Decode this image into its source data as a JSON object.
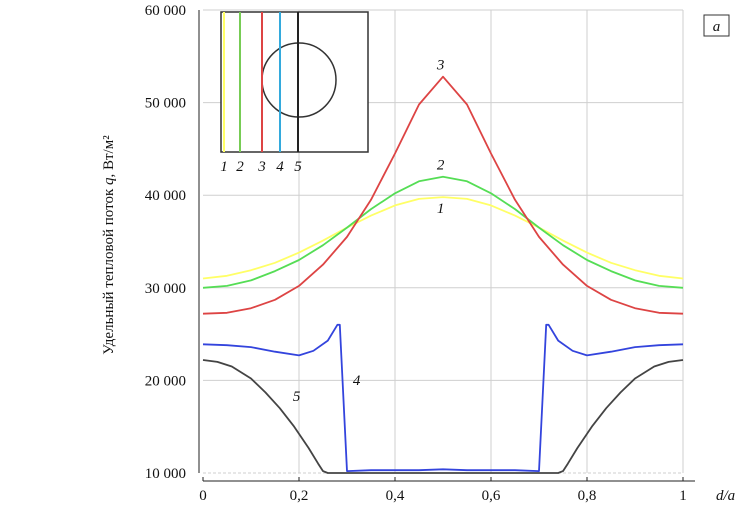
{
  "chart_data": {
    "type": "line",
    "title": "",
    "ylabel_main": "Удельный тепловой поток ",
    "ylabel_var": "q",
    "ylabel_unit": ", Вт/м²",
    "xlabel": "d/a",
    "panel_label": "a",
    "xlim": [
      0,
      1
    ],
    "ylim": [
      10000,
      60000
    ],
    "xticks": [
      0,
      0.2,
      0.4,
      0.6,
      0.8,
      1
    ],
    "xtick_labels": [
      "0",
      "0,2",
      "0,4",
      "0,6",
      "0,8",
      "1"
    ],
    "yticks": [
      10000,
      20000,
      30000,
      40000,
      50000,
      60000
    ],
    "ytick_labels": [
      "10 000",
      "20 000",
      "30 000",
      "40 000",
      "50 000",
      "60 000"
    ],
    "grid": true,
    "series": [
      {
        "name": "1",
        "color": "#ffff66",
        "x": [
          0,
          0.05,
          0.1,
          0.15,
          0.2,
          0.25,
          0.3,
          0.35,
          0.4,
          0.45,
          0.5,
          0.55,
          0.6,
          0.65,
          0.7,
          0.75,
          0.8,
          0.85,
          0.9,
          0.95,
          1
        ],
        "y": [
          31000,
          31300,
          31900,
          32700,
          33800,
          35100,
          36500,
          37800,
          38900,
          39600,
          39800,
          39600,
          38900,
          37800,
          36500,
          35100,
          33800,
          32700,
          31900,
          31300,
          31000
        ]
      },
      {
        "name": "2",
        "color": "#55dd55",
        "x": [
          0,
          0.05,
          0.1,
          0.15,
          0.2,
          0.25,
          0.3,
          0.35,
          0.4,
          0.45,
          0.5,
          0.55,
          0.6,
          0.65,
          0.7,
          0.75,
          0.8,
          0.85,
          0.9,
          0.95,
          1
        ],
        "y": [
          30000,
          30200,
          30800,
          31800,
          33000,
          34600,
          36500,
          38500,
          40200,
          41500,
          42000,
          41500,
          40200,
          38500,
          36500,
          34600,
          33000,
          31800,
          30800,
          30200,
          30000
        ]
      },
      {
        "name": "3",
        "color": "#dd4444",
        "x": [
          0,
          0.05,
          0.1,
          0.15,
          0.2,
          0.25,
          0.3,
          0.35,
          0.4,
          0.45,
          0.5,
          0.55,
          0.6,
          0.65,
          0.7,
          0.75,
          0.8,
          0.85,
          0.9,
          0.95,
          1
        ],
        "y": [
          27200,
          27300,
          27800,
          28700,
          30200,
          32500,
          35500,
          39500,
          44500,
          49800,
          52800,
          49800,
          44500,
          39500,
          35500,
          32500,
          30200,
          28700,
          27800,
          27300,
          27200
        ]
      },
      {
        "name": "4",
        "color": "#3344dd",
        "x": [
          0,
          0.05,
          0.1,
          0.15,
          0.2,
          0.23,
          0.26,
          0.28,
          0.285,
          0.3,
          0.35,
          0.4,
          0.45,
          0.5,
          0.55,
          0.6,
          0.65,
          0.7,
          0.715,
          0.72,
          0.74,
          0.77,
          0.8,
          0.85,
          0.9,
          0.95,
          1
        ],
        "y": [
          23900,
          23800,
          23600,
          23100,
          22700,
          23200,
          24300,
          26000,
          26000,
          10200,
          10300,
          10300,
          10300,
          10400,
          10300,
          10300,
          10300,
          10200,
          26000,
          26000,
          24300,
          23200,
          22700,
          23100,
          23600,
          23800,
          23900
        ]
      },
      {
        "name": "5",
        "color": "#444444",
        "x": [
          0,
          0.03,
          0.06,
          0.1,
          0.13,
          0.16,
          0.19,
          0.22,
          0.24,
          0.25,
          0.26,
          0.3,
          0.4,
          0.5,
          0.6,
          0.7,
          0.74,
          0.75,
          0.76,
          0.78,
          0.81,
          0.84,
          0.87,
          0.9,
          0.94,
          0.97,
          1
        ],
        "y": [
          22200,
          22000,
          21500,
          20200,
          18700,
          17000,
          15000,
          12700,
          11000,
          10200,
          10000,
          10000,
          10000,
          10000,
          10000,
          10000,
          10000,
          10200,
          11000,
          12700,
          15000,
          17000,
          18700,
          20200,
          21500,
          22000,
          22200
        ]
      }
    ],
    "annotations": [
      {
        "text": "1",
        "x": 0.495,
        "y": 38100
      },
      {
        "text": "2",
        "x": 0.495,
        "y": 42800
      },
      {
        "text": "3",
        "x": 0.495,
        "y": 53600
      },
      {
        "text": "4",
        "x": 0.32,
        "y": 19500
      },
      {
        "text": "5",
        "x": 0.195,
        "y": 17800
      }
    ],
    "inset": {
      "line_labels": [
        "1",
        "2",
        "3",
        "4",
        "5"
      ],
      "line_colors": [
        "#ffff66",
        "#77cc55",
        "#dd4444",
        "#33aadd",
        "#222222"
      ]
    }
  }
}
